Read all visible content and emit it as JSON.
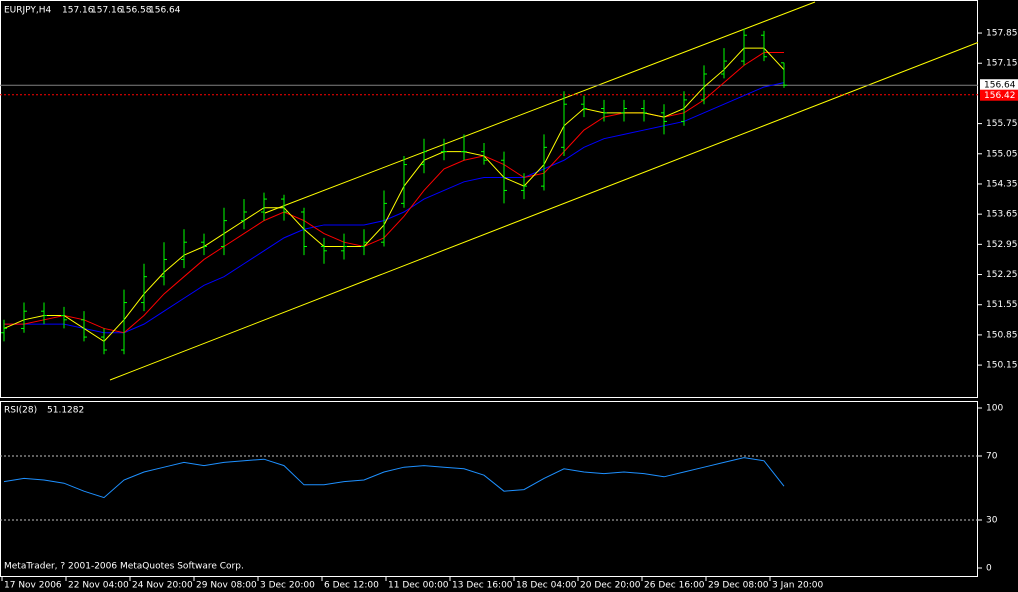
{
  "chart_data": {
    "type": "ohlc",
    "symbol": "EURJPY,H4",
    "header_values": [
      157.16,
      157.16,
      156.58,
      156.64
    ],
    "color": "#00ff00",
    "open": [
      150.9,
      151.0,
      151.4,
      151.3,
      151.2,
      150.8,
      150.5,
      151.6,
      152.2,
      152.6,
      153.0,
      152.9,
      153.5,
      153.7,
      154.0,
      153.7,
      152.9,
      152.8,
      152.9,
      153.0,
      153.9,
      154.8,
      155.1,
      155.1,
      155.1,
      154.9,
      154.2,
      154.3,
      155.2,
      156.2,
      156.1,
      156.0,
      156.1,
      156.0,
      155.8,
      156.3,
      156.9,
      157.2,
      157.8,
      157.16
    ],
    "high": [
      151.2,
      151.6,
      151.6,
      151.5,
      151.4,
      151.0,
      151.9,
      152.5,
      153.0,
      153.3,
      153.2,
      153.8,
      154.0,
      154.15,
      154.1,
      153.8,
      153.1,
      153.2,
      153.3,
      154.2,
      155.0,
      155.4,
      155.4,
      155.5,
      155.3,
      155.1,
      154.6,
      155.5,
      156.5,
      156.4,
      156.3,
      156.3,
      156.3,
      156.2,
      156.5,
      157.1,
      157.5,
      157.95,
      157.9,
      157.16
    ],
    "low": [
      150.7,
      150.9,
      151.1,
      151.0,
      150.7,
      150.4,
      150.4,
      151.4,
      152.0,
      152.4,
      152.7,
      152.7,
      153.3,
      153.5,
      153.5,
      152.7,
      152.5,
      152.6,
      152.7,
      152.9,
      153.8,
      154.6,
      154.9,
      154.9,
      154.8,
      153.9,
      154.0,
      154.2,
      155.0,
      155.9,
      155.8,
      155.8,
      155.8,
      155.5,
      155.7,
      156.2,
      156.8,
      157.1,
      157.2,
      156.58
    ],
    "close": [
      151.0,
      151.4,
      151.3,
      151.2,
      150.8,
      150.5,
      151.6,
      152.2,
      152.6,
      153.0,
      152.9,
      153.5,
      153.7,
      154.0,
      153.7,
      152.9,
      152.8,
      152.9,
      153.0,
      153.9,
      154.8,
      155.1,
      155.1,
      155.1,
      154.9,
      154.2,
      154.3,
      155.2,
      156.2,
      156.1,
      156.0,
      156.1,
      156.0,
      155.8,
      156.3,
      156.9,
      157.2,
      157.8,
      157.3,
      156.64
    ],
    "moving_averages": [
      {
        "color": "#0000ff",
        "values": [
          151.1,
          151.1,
          151.1,
          151.1,
          151.0,
          150.9,
          150.9,
          151.1,
          151.4,
          151.7,
          152.0,
          152.2,
          152.5,
          152.8,
          153.1,
          153.3,
          153.4,
          153.4,
          153.4,
          153.5,
          153.7,
          154.0,
          154.2,
          154.4,
          154.5,
          154.5,
          154.5,
          154.7,
          154.9,
          155.2,
          155.4,
          155.5,
          155.6,
          155.7,
          155.8,
          156.0,
          156.2,
          156.4,
          156.6,
          156.7
        ]
      },
      {
        "color": "#ff0000",
        "values": [
          151.1,
          151.1,
          151.2,
          151.3,
          151.2,
          151.0,
          150.9,
          151.3,
          151.8,
          152.2,
          152.6,
          152.9,
          153.2,
          153.5,
          153.7,
          153.5,
          153.2,
          153.0,
          152.9,
          153.1,
          153.6,
          154.2,
          154.7,
          154.9,
          155.0,
          154.8,
          154.5,
          154.6,
          155.1,
          155.6,
          155.9,
          156.0,
          156.0,
          155.9,
          156.0,
          156.3,
          156.7,
          157.1,
          157.4,
          157.4
        ]
      },
      {
        "color": "#ffff00",
        "values": [
          151.0,
          151.2,
          151.3,
          151.3,
          151.0,
          150.7,
          151.2,
          151.8,
          152.3,
          152.7,
          152.9,
          153.2,
          153.5,
          153.8,
          153.8,
          153.3,
          152.9,
          152.9,
          152.9,
          153.4,
          154.3,
          154.9,
          155.1,
          155.1,
          155.0,
          154.5,
          154.3,
          154.8,
          155.7,
          156.1,
          156.0,
          156.0,
          156.0,
          155.9,
          156.1,
          156.6,
          157.0,
          157.5,
          157.5,
          157.0
        ]
      }
    ],
    "ylim": [
      149.41,
      158.57
    ],
    "yticks": [
      157.85,
      157.15,
      155.75,
      155.05,
      154.35,
      153.65,
      152.95,
      152.25,
      151.55,
      150.85,
      150.15
    ],
    "current_price": 156.64,
    "level": 156.42,
    "x_labels": [
      "17 Nov 2006",
      "22 Nov 04:00",
      "24 Nov 20:00",
      "29 Nov 08:00",
      "3 Dec 20:00",
      "6 Dec 12:00",
      "11 Dec 00:00",
      "13 Dec 16:00",
      "18 Dec 04:00",
      "20 Dec 20:00",
      "26 Dec 16:00",
      "29 Dec 08:00",
      "3 Jan 20:00"
    ],
    "rsi": {
      "label": "RSI(28)",
      "value": 51.1282,
      "color": "#1e90ff",
      "values": [
        54,
        56,
        55,
        53,
        48,
        44,
        55,
        60,
        63,
        66,
        64,
        66,
        67,
        68,
        64,
        52,
        52,
        54,
        55,
        60,
        63,
        64,
        63,
        62,
        58,
        48,
        49,
        56,
        62,
        60,
        59,
        60,
        59,
        57,
        60,
        63,
        66,
        69,
        67,
        51.1282
      ],
      "ylim": [
        0,
        100
      ],
      "yticks": [
        100,
        70,
        30,
        0
      ],
      "levels": [
        70,
        30
      ]
    },
    "copyright": "MetaTrader, ? 2001-2006 MetaQuotes Software Corp."
  }
}
